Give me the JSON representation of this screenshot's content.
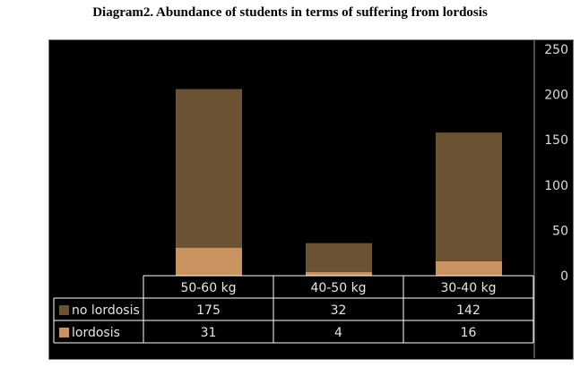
{
  "title": "Diagram2. Abundance of students in terms of suffering from lordosis",
  "colors": {
    "no_lordosis": "#6b5233",
    "lordosis": "#c8935f",
    "background": "#000000",
    "grid": "#ffffff",
    "text": "#e6e6e6"
  },
  "chart_data": {
    "type": "bar",
    "stacked": true,
    "title": "Diagram2. Abundance of students in terms of suffering from lordosis",
    "categories": [
      "50-60 kg",
      "40-50 kg",
      "30-40 kg"
    ],
    "series": [
      {
        "name": "no lordosis",
        "values": [
          175,
          32,
          142
        ]
      },
      {
        "name": "lordosis",
        "values": [
          31,
          4,
          16
        ]
      }
    ],
    "ylim": [
      0,
      250
    ],
    "yticks": [
      0,
      50,
      100,
      150,
      200,
      250
    ],
    "yaxis_position": "right",
    "legend": "data-table",
    "xlabel": "",
    "ylabel": ""
  }
}
